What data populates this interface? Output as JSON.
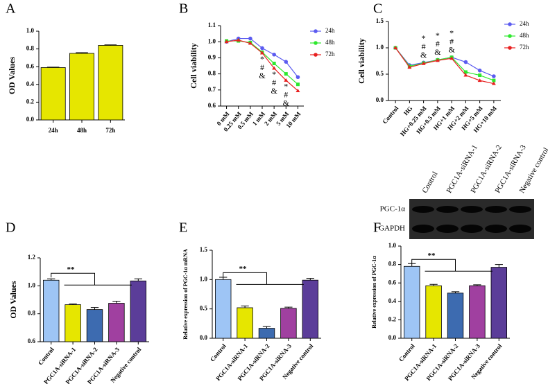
{
  "chart_data": [
    {
      "type": "bar",
      "label": "A",
      "y_label": "OD Values",
      "categories": [
        "24h",
        "48h",
        "72h"
      ],
      "values": [
        0.59,
        0.75,
        0.84
      ],
      "errors": [
        0.005,
        0.008,
        0.006
      ],
      "colors": [
        "#e6e600",
        "#e6e600",
        "#e6e600"
      ],
      "ylim": [
        0,
        1.0
      ],
      "yticks": [
        {
          "value": 0,
          "label": "0.0"
        },
        0.2,
        0.4,
        0.6,
        0.8,
        {
          "value": 1.0,
          "label": "1.0"
        }
      ]
    },
    {
      "type": "line",
      "label": "B",
      "y_label": "Cell viability",
      "categories": [
        "0 mM",
        "0.25 mM",
        "0.5 mM",
        "1 mM",
        "2 mM",
        "5 mM",
        "10 mM"
      ],
      "series": [
        {
          "name": "24h",
          "color": "#5b5bf0",
          "values": [
            1.0,
            1.02,
            1.02,
            0.96,
            0.92,
            0.875,
            0.78
          ]
        },
        {
          "name": "48h",
          "color": "#2ee82e",
          "values": [
            1.005,
            1.005,
            0.995,
            0.935,
            0.865,
            0.8,
            0.735
          ]
        },
        {
          "name": "72h",
          "color": "#e82020",
          "values": [
            1.0,
            1.01,
            0.99,
            0.93,
            0.835,
            0.76,
            0.695
          ]
        }
      ],
      "annotations": [
        null,
        null,
        null,
        [
          "*",
          "#",
          "&"
        ],
        [
          "*",
          "#",
          "&"
        ],
        [
          "*",
          "#",
          "&"
        ],
        null
      ],
      "ylim": [
        0.6,
        1.1
      ],
      "yticks": [
        0.6,
        0.7,
        0.8,
        0.9,
        {
          "value": 1.0,
          "label": "1.0"
        },
        1.1
      ]
    },
    {
      "type": "line",
      "label": "C",
      "y_label": "Cell viability",
      "categories": [
        "Control",
        "HG",
        "HG+0.25 mM",
        "HG+0.5 mM",
        "HG+1 mM",
        "HG+2 mM",
        "HG+5 mM",
        "HG+10 mM"
      ],
      "series": [
        {
          "name": "24h",
          "color": "#5b5bf0",
          "values": [
            1.0,
            0.67,
            0.72,
            0.77,
            0.82,
            0.73,
            0.57,
            0.46
          ]
        },
        {
          "name": "48h",
          "color": "#2ee82e",
          "values": [
            1.0,
            0.65,
            0.71,
            0.77,
            0.82,
            0.54,
            0.48,
            0.38
          ]
        },
        {
          "name": "72h",
          "color": "#e82020",
          "values": [
            1.0,
            0.63,
            0.7,
            0.76,
            0.8,
            0.48,
            0.38,
            0.32
          ]
        }
      ],
      "annotations": [
        null,
        null,
        [
          "*",
          "#",
          "&"
        ],
        [
          "*",
          "#",
          "&"
        ],
        [
          "*",
          "#",
          "&"
        ],
        null,
        null,
        null
      ],
      "ylim": [
        0,
        1.5
      ],
      "yticks": [
        {
          "value": 0,
          "label": "0.0"
        },
        0.5,
        {
          "value": 1.0,
          "label": "1.0"
        },
        1.5
      ]
    },
    {
      "type": "bar",
      "label": "D",
      "y_label": "OD Values",
      "significance": "**",
      "categories": [
        "Control",
        "PGC1A-siRNA-1",
        "PGC1A-siRNA-2",
        "PGC1A-siRNA-3",
        "Negative control"
      ],
      "values": [
        1.04,
        0.865,
        0.83,
        0.875,
        1.035
      ],
      "errors": [
        0.01,
        0.005,
        0.015,
        0.015,
        0.015
      ],
      "colors": [
        "#9ec5f5",
        "#e6e600",
        "#3d6bb0",
        "#a040a0",
        "#5b3d99"
      ],
      "ylim": [
        0.6,
        1.2
      ],
      "yticks": [
        0.6,
        0.8,
        {
          "value": 1.0,
          "label": "1.0"
        },
        1.2
      ]
    },
    {
      "type": "bar",
      "label": "E",
      "y_label": "Relative expression of PGC-1α mRNA",
      "significance": "**",
      "categories": [
        "Control",
        "PGC1A-siRNA-1",
        "PGC1A-siRNA-2",
        "PGC1A-siRNA-3",
        "Negative control"
      ],
      "values": [
        1.0,
        0.52,
        0.17,
        0.51,
        0.99
      ],
      "errors": [
        0.04,
        0.03,
        0.03,
        0.02,
        0.03
      ],
      "colors": [
        "#9ec5f5",
        "#e6e600",
        "#3d6bb0",
        "#a040a0",
        "#5b3d99"
      ],
      "ylim": [
        0,
        1.5
      ],
      "yticks": [
        {
          "value": 0,
          "label": "0.0"
        },
        0.5,
        {
          "value": 1.0,
          "label": "1.0"
        },
        1.5
      ]
    },
    {
      "type": "bar",
      "label": "F",
      "y_label": "Relative expression of PGC-1α",
      "significance": "**",
      "categories": [
        "Control",
        "PGC1A-siRNA-1",
        "PGC1A-siRNA-2",
        "PGC1A-siRNA-3",
        "Negative control"
      ],
      "values": [
        0.78,
        0.57,
        0.49,
        0.57,
        0.77
      ],
      "errors": [
        0.03,
        0.015,
        0.015,
        0.01,
        0.03
      ],
      "colors": [
        "#9ec5f5",
        "#e6e600",
        "#3d6bb0",
        "#a040a0",
        "#5b3d99"
      ],
      "blot_rows": [
        "PGC-1α",
        "GAPDH"
      ],
      "ylim": [
        0,
        1.0
      ],
      "yticks": [
        {
          "value": 0,
          "label": "0.0"
        },
        0.2,
        0.4,
        0.6,
        0.8,
        {
          "value": 1.0,
          "label": "1.0"
        }
      ]
    }
  ]
}
